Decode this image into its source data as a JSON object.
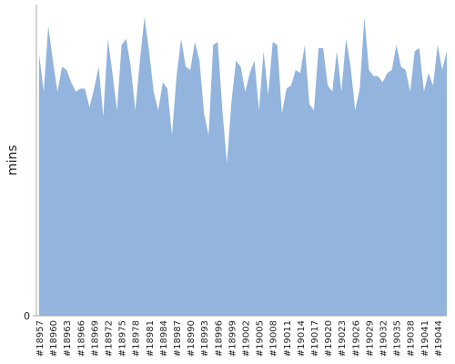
{
  "chart_data": {
    "type": "area",
    "y_label": "mins",
    "categories": [
      "#18957",
      null,
      null,
      "#18960",
      null,
      null,
      "#18963",
      null,
      null,
      "#18966",
      null,
      null,
      "#18969",
      null,
      null,
      "#18972",
      null,
      null,
      "#18975",
      null,
      null,
      "#18978",
      null,
      null,
      "#18981",
      null,
      null,
      "#18984",
      null,
      null,
      "#18987",
      null,
      null,
      "#18990",
      null,
      null,
      "#18993",
      null,
      null,
      "#18996",
      null,
      null,
      "#18999",
      null,
      null,
      "#19002",
      null,
      null,
      "#19005",
      null,
      null,
      "#19008",
      null,
      null,
      "#19011",
      null,
      null,
      "#19014",
      null,
      null,
      "#19017",
      null,
      null,
      "#19020",
      null,
      null,
      "#19023",
      null,
      null,
      "#19026",
      null,
      null,
      "#19029",
      null,
      null,
      "#19032",
      null,
      null,
      "#19035",
      null,
      null,
      "#19038",
      null,
      null,
      "#19041",
      null,
      null,
      "#19044",
      null,
      null
    ],
    "values": [
      84,
      72,
      93,
      82,
      72,
      80,
      79,
      75,
      72,
      73,
      73,
      67,
      73,
      80,
      64,
      89,
      78,
      66,
      87,
      89,
      80,
      66,
      82,
      96,
      85,
      72,
      66,
      75,
      73,
      58,
      77,
      89,
      80,
      79,
      88,
      82,
      65,
      58,
      87,
      88,
      66,
      49,
      69,
      82,
      80,
      72,
      78,
      82,
      66,
      85,
      71,
      88,
      87,
      65,
      73,
      74,
      79,
      78,
      87,
      68,
      66,
      86,
      86,
      74,
      72,
      85,
      72,
      89,
      80,
      66,
      73,
      96,
      79,
      77,
      77,
      75,
      78,
      79,
      87,
      80,
      79,
      72,
      85,
      86,
      72,
      78,
      74,
      87,
      79,
      85
    ],
    "color": "#92b4dd",
    "ylim": [
      0,
      100
    ],
    "yticks": [
      0
    ]
  }
}
